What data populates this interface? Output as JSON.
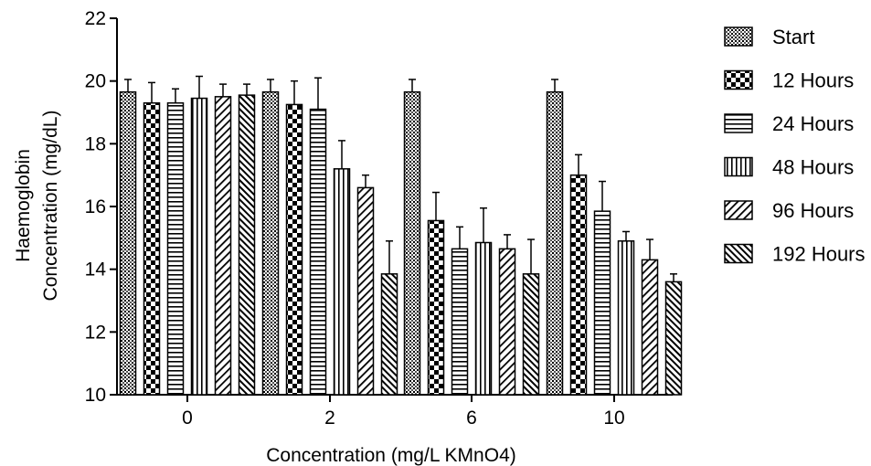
{
  "chart_data": {
    "type": "bar",
    "xlabel": "Concentration (mg/L KMnO4)",
    "ylabel": [
      "Haemoglobin",
      "Concentration (mg/dL)"
    ],
    "categories": [
      "0",
      "2",
      "6",
      "10"
    ],
    "ylim": [
      10,
      22
    ],
    "yticks": [
      "10",
      "12",
      "14",
      "16",
      "18",
      "20",
      "22"
    ],
    "grid": false,
    "legend_position": "right",
    "series": [
      {
        "name": "Start",
        "pattern": "dots-dense",
        "values": [
          19.65,
          19.65,
          19.65,
          19.65
        ],
        "errors": [
          0.4,
          0.4,
          0.4,
          0.4
        ]
      },
      {
        "name": "12 Hours",
        "pattern": "checker",
        "values": [
          19.3,
          19.25,
          15.55,
          17.0
        ],
        "errors": [
          0.65,
          0.75,
          0.9,
          0.65
        ]
      },
      {
        "name": "24 Hours",
        "pattern": "hlines",
        "values": [
          19.3,
          19.1,
          14.65,
          15.85
        ],
        "errors": [
          0.45,
          1.0,
          0.7,
          0.95
        ]
      },
      {
        "name": "48 Hours",
        "pattern": "vlines",
        "values": [
          19.45,
          17.2,
          14.85,
          14.9
        ],
        "errors": [
          0.7,
          0.9,
          1.1,
          0.3
        ]
      },
      {
        "name": "96 Hours",
        "pattern": "diag-right",
        "values": [
          19.5,
          16.6,
          14.65,
          14.3
        ],
        "errors": [
          0.4,
          0.4,
          0.45,
          0.65
        ]
      },
      {
        "name": "192 Hours",
        "pattern": "diag-left",
        "values": [
          19.55,
          13.85,
          13.85,
          13.6
        ],
        "errors": [
          0.35,
          1.05,
          1.1,
          0.25
        ]
      }
    ]
  }
}
